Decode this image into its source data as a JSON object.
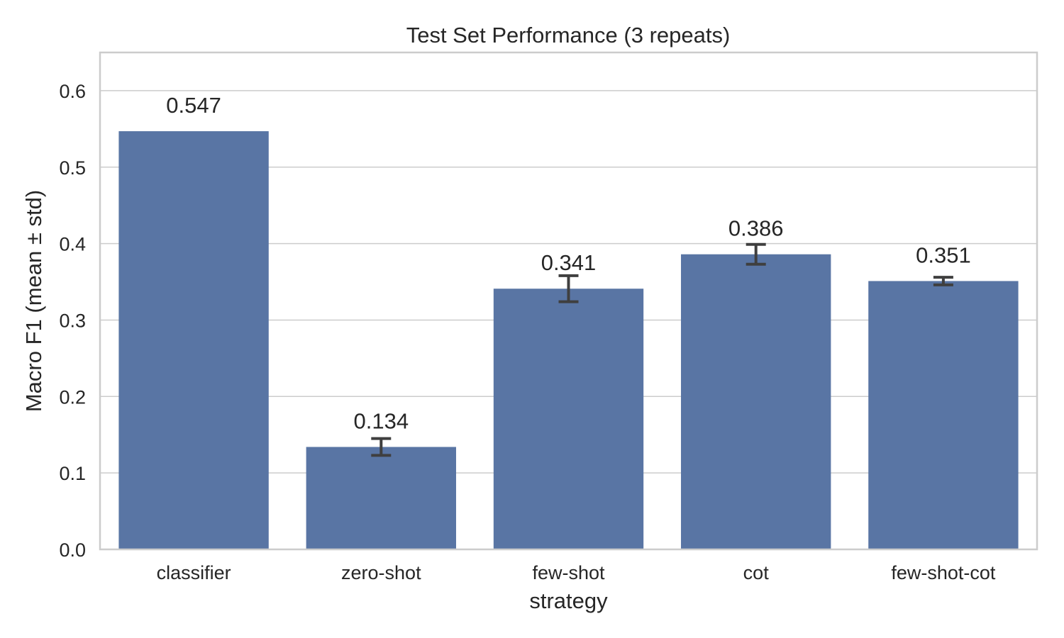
{
  "chart_data": {
    "type": "bar",
    "title": "Test Set Performance (3 repeats)",
    "xlabel": "strategy",
    "ylabel": "Macro F1 (mean ± std)",
    "categories": [
      "classifier",
      "zero-shot",
      "few-shot",
      "cot",
      "few-shot-cot"
    ],
    "values": [
      0.547,
      0.134,
      0.341,
      0.386,
      0.351
    ],
    "errors": [
      null,
      0.011,
      0.017,
      0.013,
      0.005
    ],
    "value_labels": [
      "0.547",
      "0.134",
      "0.341",
      "0.386",
      "0.351"
    ],
    "ylim": [
      0,
      0.65
    ],
    "yticks": [
      0.0,
      0.1,
      0.2,
      0.3,
      0.4,
      0.5,
      0.6
    ],
    "ytick_labels": [
      "0.0",
      "0.1",
      "0.2",
      "0.3",
      "0.4",
      "0.5",
      "0.6"
    ],
    "grid": true,
    "bar_color": "#5975a4",
    "error_color": "#3f3f3f",
    "grid_color": "#cccccc"
  }
}
